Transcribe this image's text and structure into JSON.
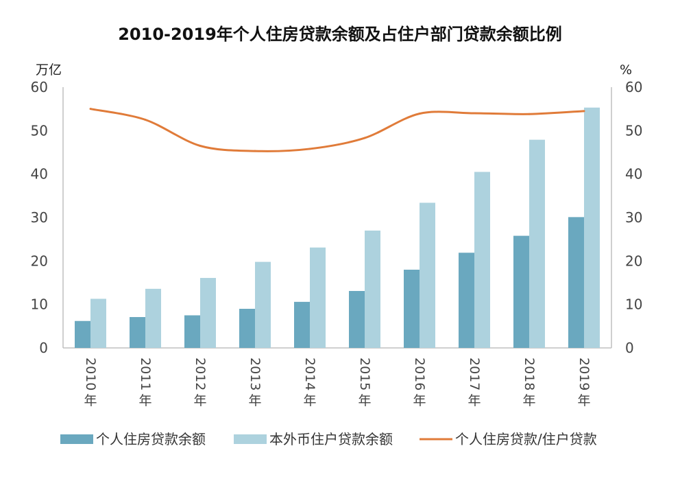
{
  "chart_data": {
    "type": "bar",
    "title": "2010-2019年个人住房贷款余额及占住户部门贷款余额比例",
    "y_left_unit": "万亿",
    "y_right_unit": "%",
    "ylim": [
      0,
      60
    ],
    "y2lim": [
      0,
      60
    ],
    "yticks": [
      0,
      10,
      20,
      30,
      40,
      50,
      60
    ],
    "grid": false,
    "legend_position": "bottom",
    "categories": [
      {
        "year": "2010",
        "suffix": "年"
      },
      {
        "year": "2011",
        "suffix": "年"
      },
      {
        "year": "2012",
        "suffix": "年"
      },
      {
        "year": "2013",
        "suffix": "年"
      },
      {
        "year": "2014",
        "suffix": "年"
      },
      {
        "year": "2015",
        "suffix": "年"
      },
      {
        "year": "2016",
        "suffix": "年"
      },
      {
        "year": "2017",
        "suffix": "年"
      },
      {
        "year": "2018",
        "suffix": "年"
      },
      {
        "year": "2019",
        "suffix": "年"
      }
    ],
    "series": [
      {
        "name": "个人住房贷款余额",
        "type": "bar",
        "axis": "left",
        "color": "#6aa8bf",
        "values": [
          6.2,
          7.1,
          7.5,
          9.0,
          10.6,
          13.1,
          18.0,
          21.9,
          25.8,
          30.1
        ]
      },
      {
        "name": "本外币住户贷款余额",
        "type": "bar",
        "axis": "left",
        "color": "#add2de",
        "values": [
          11.3,
          13.6,
          16.1,
          19.8,
          23.1,
          27.0,
          33.4,
          40.5,
          47.9,
          55.3
        ]
      },
      {
        "name": "个人住房贷款/住户贷款",
        "type": "line",
        "axis": "right",
        "color": "#e07b39",
        "values": [
          55.0,
          52.5,
          46.5,
          45.3,
          45.8,
          48.3,
          53.9,
          54.0,
          53.8,
          54.5
        ]
      }
    ]
  }
}
